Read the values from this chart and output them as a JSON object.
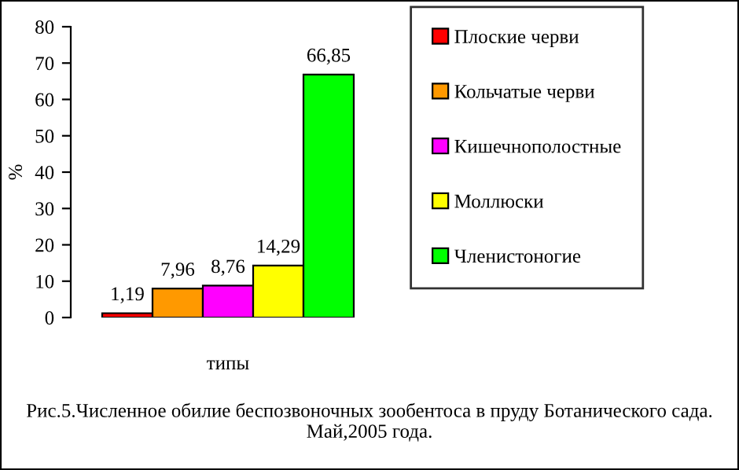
{
  "chart_data": {
    "type": "bar",
    "categories": [
      null
    ],
    "xlabel": "типы",
    "ylabel": "%",
    "ylim": [
      0,
      80
    ],
    "yticks": [
      0,
      10,
      20,
      30,
      40,
      50,
      60,
      70,
      80
    ],
    "series": [
      {
        "name": "Плоские черви",
        "color": "#ff0000",
        "values": [
          1.19
        ],
        "value_labels": [
          "1,19"
        ]
      },
      {
        "name": "Кольчатые черви",
        "color": "#ff9900",
        "values": [
          7.96
        ],
        "value_labels": [
          "7,96"
        ]
      },
      {
        "name": "Кишечнополостные",
        "color": "#ff00ff",
        "values": [
          8.76
        ],
        "value_labels": [
          "8,76"
        ]
      },
      {
        "name": "Моллюски",
        "color": "#ffff00",
        "values": [
          14.29
        ],
        "value_labels": [
          "14,29"
        ]
      },
      {
        "name": "Членистоногие",
        "color": "#00ff00",
        "values": [
          66.85
        ],
        "value_labels": [
          "66,85"
        ]
      }
    ],
    "legend": "right",
    "grid": false,
    "annotations": [
      "Рис.5.Численное обилие беспозвоночных зообентоса в пруду Ботанического сада. Май,2005 года."
    ]
  }
}
